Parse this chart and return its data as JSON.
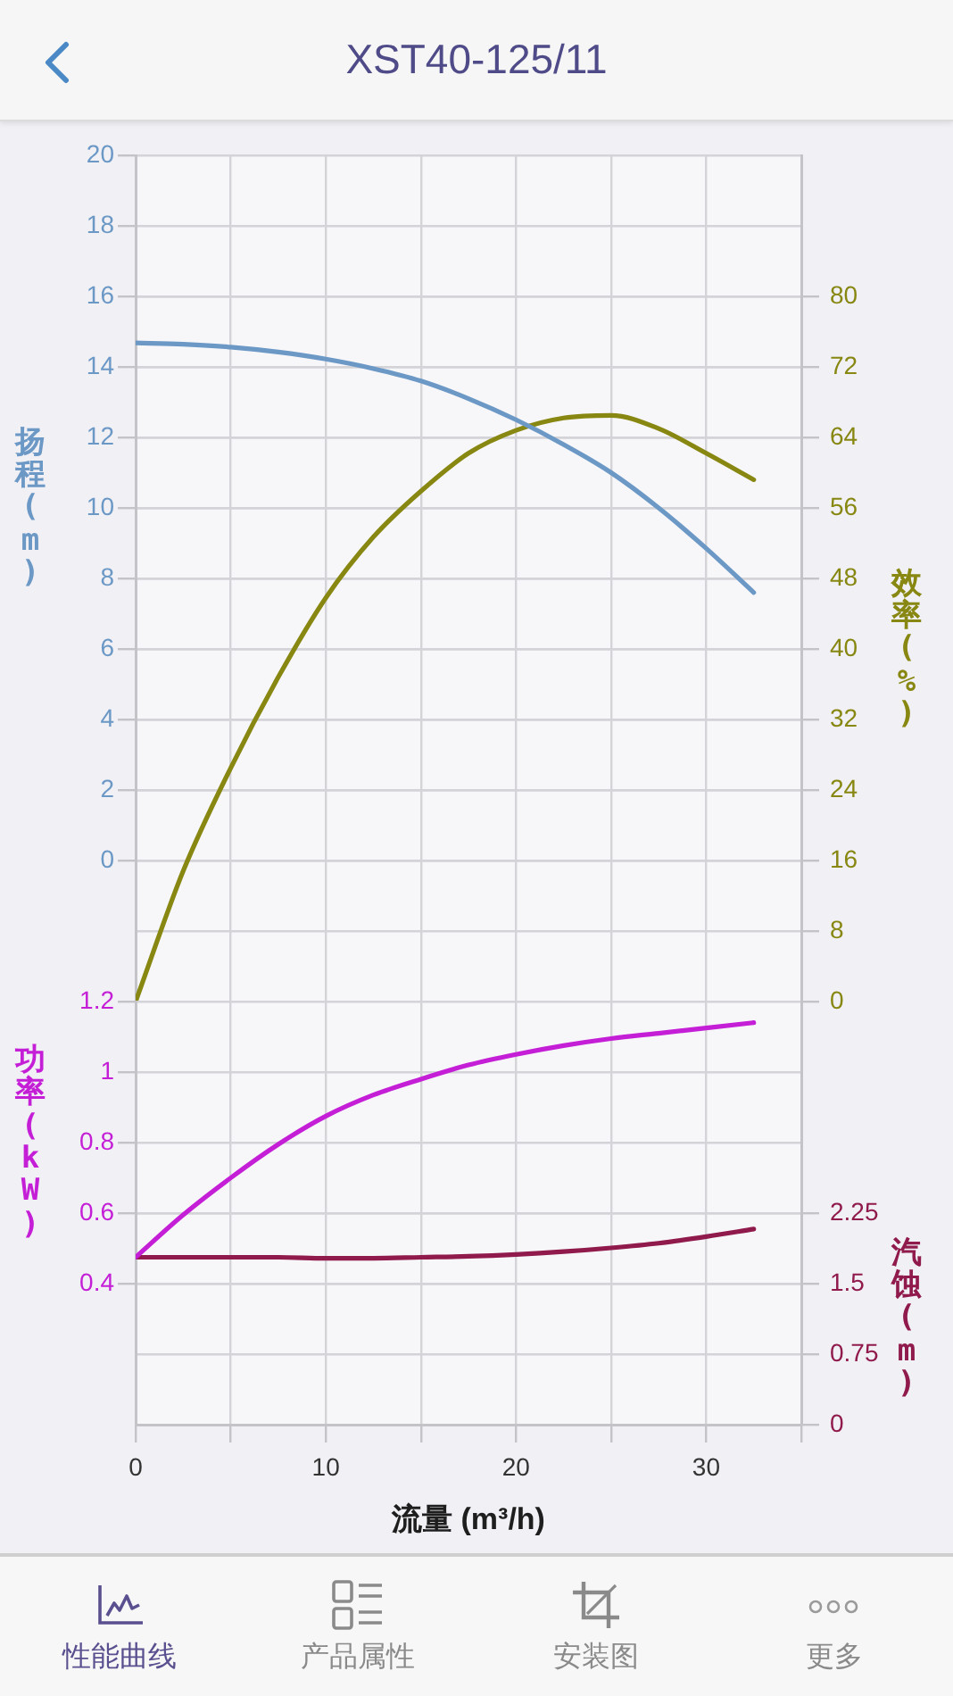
{
  "chart_data": [
    {
      "type": "line",
      "title": "XST40-125/11",
      "ylabel": "扬程 (m)",
      "y2label": "效率 (%)",
      "x": [
        0,
        2.5,
        5,
        7.5,
        10,
        12.5,
        15,
        17.5,
        20,
        22.5,
        25,
        27.5,
        30,
        32.5
      ],
      "xlim": [
        0,
        35
      ],
      "xticks": [
        0,
        {
          "value": 5,
          "label": null
        },
        10,
        {
          "value": 15,
          "label": null
        },
        20,
        {
          "value": 25,
          "label": null
        },
        30,
        {
          "value": 35,
          "label": null
        }
      ],
      "ylim": [
        -4,
        20
      ],
      "yticks": [
        0,
        2,
        4,
        6,
        8,
        10,
        12,
        14,
        16,
        18,
        20
      ],
      "y2lim": [
        0,
        96
      ],
      "y2ticks": [
        0,
        8,
        16,
        24,
        32,
        40,
        48,
        56,
        64,
        72,
        80
      ],
      "series": [
        {
          "color": "#6c98c6",
          "values": [
            14.68,
            14.64,
            14.56,
            14.42,
            14.22,
            13.95,
            13.6,
            13.1,
            12.5,
            11.8,
            11.0,
            10.0,
            8.85,
            7.6
          ]
        },
        {
          "color": "#878712",
          "axis": "y2",
          "values": [
            0,
            14.8,
            26.5,
            36.8,
            45.8,
            52.7,
            57.9,
            62.2,
            64.8,
            66.2,
            66.5,
            65.0,
            62.2,
            59.2
          ]
        }
      ],
      "grid": true,
      "marker": "none",
      "tick_labels": "y"
    },
    {
      "type": "line",
      "xlabel": "流量 (m³/h)",
      "ylabel": "功率 (kW)",
      "y2label": "汽蚀 (m)",
      "x": [
        0,
        2.5,
        5,
        7.5,
        10,
        12.5,
        15,
        17.5,
        20,
        22.5,
        25,
        27.5,
        30,
        32.5
      ],
      "xlim": [
        0,
        35
      ],
      "xticks": [
        0,
        {
          "value": 5,
          "label": null
        },
        10,
        {
          "value": 15,
          "label": null
        },
        20,
        {
          "value": 25,
          "label": null
        },
        30,
        {
          "value": 35,
          "label": null
        }
      ],
      "ylim": [
        0,
        1.2
      ],
      "yticks": [
        0.4,
        0.6,
        0.8,
        1,
        1.2
      ],
      "y2lim": [
        0,
        4.5
      ],
      "y2ticks": [
        0,
        0.75,
        1.5,
        2.25
      ],
      "series": [
        {
          "color": "#c41fd6",
          "values": [
            0.475,
            0.595,
            0.7,
            0.795,
            0.875,
            0.935,
            0.98,
            1.02,
            1.05,
            1.075,
            1.095,
            1.11,
            1.125,
            1.14
          ]
        },
        {
          "color": "#8f1a4b",
          "axis": "y2",
          "values": [
            1.78,
            1.78,
            1.78,
            1.78,
            1.77,
            1.77,
            1.78,
            1.79,
            1.81,
            1.84,
            1.88,
            1.93,
            2.0,
            2.08
          ]
        }
      ],
      "grid": true,
      "marker": "none",
      "annotations": [
        "性能曲线",
        "产品属性",
        "安装图",
        "更多"
      ]
    }
  ]
}
